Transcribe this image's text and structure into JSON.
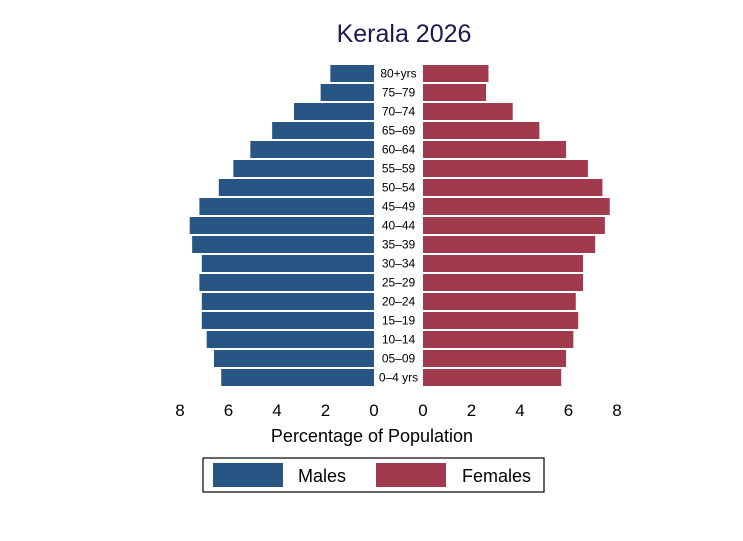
{
  "chart_data": {
    "type": "bar",
    "orientation": "horizontal",
    "layout": "population-pyramid",
    "title": "Kerala 2026",
    "xlabel": "Percentage of Population",
    "ylabel": "",
    "xlim": [
      0,
      8
    ],
    "x_ticks": [
      "0",
      "2",
      "4",
      "6",
      "8"
    ],
    "categories": [
      "0–4 yrs",
      "05–09",
      "10–14",
      "15–19",
      "20–24",
      "25–29",
      "30–34",
      "35–39",
      "40–44",
      "45–49",
      "50–54",
      "55–59",
      "60–64",
      "65–69",
      "70–74",
      "75–79",
      "80+yrs"
    ],
    "series": [
      {
        "name": "Males",
        "color": "#275584",
        "values": [
          6.3,
          6.6,
          6.9,
          7.1,
          7.1,
          7.2,
          7.1,
          7.5,
          7.6,
          7.2,
          6.4,
          5.8,
          5.1,
          4.2,
          3.3,
          2.2,
          1.8
        ]
      },
      {
        "name": "Females",
        "color": "#a23a4e",
        "values": [
          5.7,
          5.9,
          6.2,
          6.4,
          6.3,
          6.6,
          6.6,
          7.1,
          7.5,
          7.7,
          7.4,
          6.8,
          5.9,
          4.8,
          3.7,
          2.6,
          2.7
        ]
      }
    ],
    "grid": false,
    "legend_position": "bottom"
  }
}
